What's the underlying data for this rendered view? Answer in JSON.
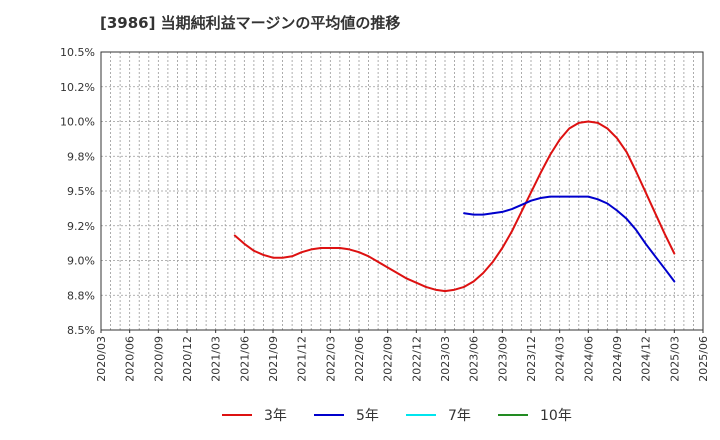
{
  "chart_data": {
    "type": "line",
    "title": "[3986]  当期純利益マージンの平均値の推移",
    "xlabel": "",
    "ylabel": "",
    "ylim": [
      8.5,
      10.5
    ],
    "y_ticks": [
      8.5,
      8.75,
      9.0,
      9.25,
      9.5,
      9.75,
      10.0,
      10.25,
      10.5
    ],
    "y_tick_labels": [
      "8.5%",
      "8.8%",
      "9.0%",
      "9.2%",
      "9.5%",
      "9.8%",
      "10.0%",
      "10.2%",
      "10.5%"
    ],
    "x_tick_labels": [
      "2020/03",
      "2020/06",
      "2020/09",
      "2020/12",
      "2021/03",
      "2021/06",
      "2021/09",
      "2021/12",
      "2022/03",
      "2022/06",
      "2022/09",
      "2022/12",
      "2023/03",
      "2023/06",
      "2023/09",
      "2023/12",
      "2024/03",
      "2024/06",
      "2024/09",
      "2024/12",
      "2025/03",
      "2025/06"
    ],
    "grid": true,
    "legend_position": "bottom",
    "series": [
      {
        "name": "3年",
        "color": "#dd1111",
        "x": [
          "2021/05",
          "2021/06",
          "2021/07",
          "2021/08",
          "2021/09",
          "2021/10",
          "2021/11",
          "2021/12",
          "2022/01",
          "2022/02",
          "2022/03",
          "2022/04",
          "2022/05",
          "2022/06",
          "2022/07",
          "2022/08",
          "2022/09",
          "2022/10",
          "2022/11",
          "2022/12",
          "2023/01",
          "2023/02",
          "2023/03",
          "2023/04",
          "2023/05",
          "2023/06",
          "2023/07",
          "2023/08",
          "2023/09",
          "2023/10",
          "2023/11",
          "2023/12",
          "2024/01",
          "2024/02",
          "2024/03",
          "2024/04",
          "2024/05",
          "2024/06",
          "2024/07",
          "2024/08",
          "2024/09",
          "2024/10",
          "2024/11",
          "2024/12",
          "2025/01",
          "2025/02",
          "2025/03"
        ],
        "values": [
          9.18,
          9.12,
          9.07,
          9.04,
          9.02,
          9.02,
          9.03,
          9.06,
          9.08,
          9.09,
          9.09,
          9.09,
          9.08,
          9.06,
          9.03,
          8.99,
          8.95,
          8.91,
          8.87,
          8.84,
          8.81,
          8.79,
          8.78,
          8.79,
          8.81,
          8.85,
          8.91,
          8.99,
          9.09,
          9.21,
          9.35,
          9.49,
          9.63,
          9.76,
          9.87,
          9.95,
          9.99,
          10.0,
          9.99,
          9.95,
          9.88,
          9.78,
          9.64,
          9.49,
          9.34,
          9.19,
          9.05
        ]
      },
      {
        "name": "5年",
        "color": "#0000cc",
        "x": [
          "2023/05",
          "2023/06",
          "2023/07",
          "2023/08",
          "2023/09",
          "2023/10",
          "2023/11",
          "2023/12",
          "2024/01",
          "2024/02",
          "2024/03",
          "2024/04",
          "2024/05",
          "2024/06",
          "2024/07",
          "2024/08",
          "2024/09",
          "2024/10",
          "2024/11",
          "2024/12",
          "2025/01",
          "2025/02",
          "2025/03"
        ],
        "values": [
          9.34,
          9.33,
          9.33,
          9.34,
          9.35,
          9.37,
          9.4,
          9.43,
          9.45,
          9.46,
          9.46,
          9.46,
          9.46,
          9.46,
          9.44,
          9.41,
          9.36,
          9.3,
          9.22,
          9.12,
          9.03,
          8.94,
          8.85
        ]
      },
      {
        "name": "7年",
        "color": "#00e5ee",
        "x": [],
        "values": []
      },
      {
        "name": "10年",
        "color": "#228b22",
        "x": [],
        "values": []
      }
    ]
  }
}
